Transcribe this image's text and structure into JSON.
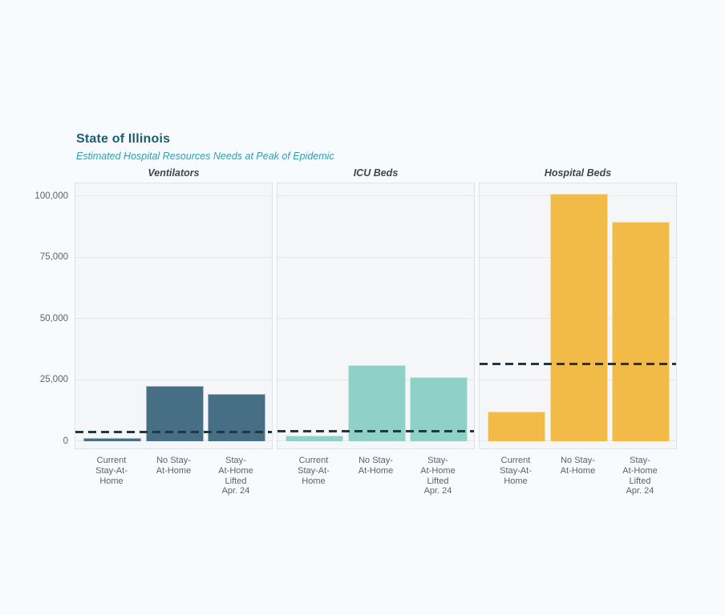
{
  "chart_data": {
    "type": "bar",
    "title": "State of Illinois",
    "subtitle": "Estimated Hospital Resources Needs at Peak of Epidemic",
    "categories": [
      "Current Stay-At-Home",
      "No Stay-At-Home",
      "Stay-At-Home Lifted Apr. 24"
    ],
    "category_tick_lines": [
      [
        "Current",
        "Stay-At-",
        "Home"
      ],
      [
        "No Stay-",
        "At-Home"
      ],
      [
        "Stay-",
        "At-Home",
        "Lifted",
        "Apr. 24"
      ]
    ],
    "panels": [
      {
        "label": "Ventilators",
        "bar_color": "#466F86",
        "values": [
          1300,
          22500,
          19000
        ],
        "capacity_line_value": 3600
      },
      {
        "label": "ICU Beds",
        "bar_color": "#8FD1C6",
        "values": [
          2000,
          31000,
          26000
        ],
        "capacity_line_value": 3800
      },
      {
        "label": "Hospital Beds",
        "bar_color": "#F2BA47",
        "values": [
          12000,
          101000,
          89500
        ],
        "capacity_line_value": 31500
      }
    ],
    "yticks": [
      {
        "value": 0,
        "label": "0"
      },
      {
        "value": 25000,
        "label": "25,000"
      },
      {
        "value": 50000,
        "label": "50,000"
      },
      {
        "value": 75000,
        "label": "75,000"
      },
      {
        "value": 100000,
        "label": "100,000"
      }
    ],
    "ylim": [
      0,
      105000
    ],
    "grid": "horizontal",
    "legend_position": "none",
    "colors": {
      "title": "#1d5c73",
      "subtitle": "#2f9eb5",
      "facet_title": "#3f464c",
      "tick_label": "#5d6267",
      "capacity_line": "#20374A",
      "plot_background": "#f4f6f8",
      "page_background": "#f8fbfd",
      "gridline": "#e3e7ea",
      "panel_border": "#dfe3e7"
    }
  }
}
